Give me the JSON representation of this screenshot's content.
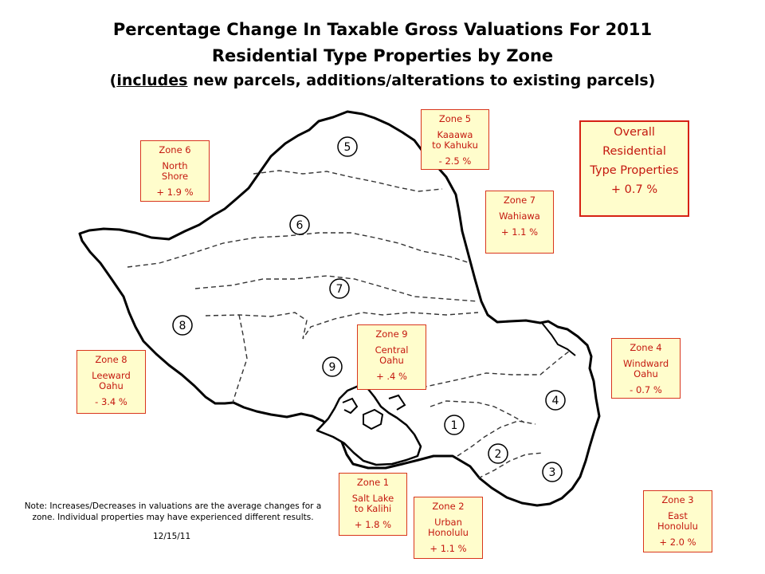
{
  "title": {
    "line1": "Percentage Change In Taxable  Gross  Valuations  For  2011",
    "line2": "Residential Type Properties by Zone",
    "line3_pre": "(",
    "line3_underlined": "includes",
    "line3_post": " new parcels, additions/alterations  to existing parcels)"
  },
  "overall": {
    "line1": "Overall",
    "line2": "Residential",
    "line3": "Type Properties",
    "value": "+ 0.7 %"
  },
  "zones": [
    {
      "title": "Zone  1",
      "name": "Salt Lake to Kalihi",
      "value": "+ 1.8 %"
    },
    {
      "title": "Zone  2",
      "name": "Urban Honolulu",
      "value": "+ 1.1 %"
    },
    {
      "title": "Zone  3",
      "name": "East Honolulu",
      "value": "+ 2.0 %"
    },
    {
      "title": "Zone  4",
      "name": "Windward Oahu",
      "value": "- 0.7 %"
    },
    {
      "title": "Zone  5",
      "name": "Kaaawa to Kahuku",
      "value": "- 2.5 %"
    },
    {
      "title": "Zone  6",
      "name": "North Shore",
      "value": "+ 1.9 %"
    },
    {
      "title": "Zone  7",
      "name": "Wahiawa",
      "value": "+ 1.1 %"
    },
    {
      "title": "Zone  8",
      "name": "Leeward Oahu",
      "value": "- 3.4 %"
    },
    {
      "title": "Zone  9",
      "name": "Central Oahu",
      "value": "+ .4 %"
    }
  ],
  "map_markers": [
    "1",
    "2",
    "3",
    "4",
    "5",
    "6",
    "7",
    "8",
    "9"
  ],
  "note": "Note: Increases/Decreases in valuations are the average changes for a zone. Individual properties may have experienced different results.",
  "date": "12/15/11",
  "colors": {
    "box_fill": "#fffdcc",
    "box_border": "#d9361c",
    "box_text": "#c4180f"
  }
}
